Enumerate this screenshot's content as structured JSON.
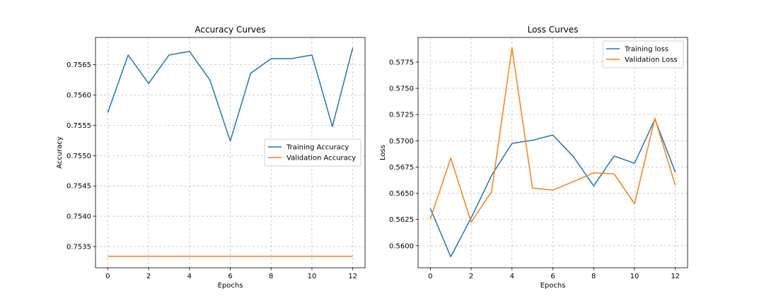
{
  "chart_data": [
    {
      "type": "line",
      "title": "Accuracy Curves",
      "xlabel": "Epochs",
      "ylabel": "Accuracy",
      "xlim": [
        -0.6,
        12.6
      ],
      "ylim": [
        0.75315,
        0.75695
      ],
      "x_ticks": [
        0,
        2,
        4,
        6,
        8,
        10,
        12
      ],
      "x_tick_labels": [
        "0",
        "2",
        "4",
        "6",
        "8",
        "10",
        "12"
      ],
      "y_ticks": [
        0.7535,
        0.754,
        0.7545,
        0.755,
        0.7555,
        0.756,
        0.7565
      ],
      "y_tick_labels": [
        "0.7535",
        "0.7540",
        "0.7545",
        "0.7550",
        "0.7555",
        "0.7560",
        "0.7565"
      ],
      "grid": true,
      "legend_position": "center-right",
      "x": [
        0,
        1,
        2,
        3,
        4,
        5,
        6,
        7,
        8,
        9,
        10,
        11,
        12
      ],
      "series": [
        {
          "name": "Training Accuracy",
          "color": "#1f77b4",
          "values": [
            0.75571,
            0.75666,
            0.75619,
            0.75666,
            0.75672,
            0.75625,
            0.75524,
            0.75636,
            0.7566,
            0.7566,
            0.75666,
            0.75548,
            0.75678
          ]
        },
        {
          "name": "Validation Accuracy",
          "color": "#ff7f0e",
          "values": [
            0.75334,
            0.75334,
            0.75334,
            0.75334,
            0.75334,
            0.75334,
            0.75334,
            0.75334,
            0.75334,
            0.75334,
            0.75334,
            0.75334,
            0.75334
          ]
        }
      ]
    },
    {
      "type": "line",
      "title": "Loss Curves",
      "xlabel": "Epochs",
      "ylabel": "Loss",
      "xlim": [
        -0.6,
        12.6
      ],
      "ylim": [
        0.5579,
        0.57985
      ],
      "x_ticks": [
        0,
        2,
        4,
        6,
        8,
        10,
        12
      ],
      "x_tick_labels": [
        "0",
        "2",
        "4",
        "6",
        "8",
        "10",
        "12"
      ],
      "y_ticks": [
        0.56,
        0.5625,
        0.565,
        0.5675,
        0.57,
        0.5725,
        0.575,
        0.5775
      ],
      "y_tick_labels": [
        "0.5600",
        "0.5625",
        "0.5650",
        "0.5675",
        "0.5700",
        "0.5725",
        "0.5750",
        "0.5775"
      ],
      "grid": true,
      "legend_position": "top-right",
      "x": [
        0,
        1,
        2,
        3,
        4,
        5,
        6,
        7,
        8,
        9,
        10,
        11,
        12
      ],
      "series": [
        {
          "name": "Training loss",
          "color": "#1f77b4",
          "values": [
            0.56355,
            0.55895,
            0.56265,
            0.5667,
            0.56975,
            0.57005,
            0.57055,
            0.5685,
            0.5657,
            0.56855,
            0.56785,
            0.57205,
            0.567
          ]
        },
        {
          "name": "Validation Loss",
          "color": "#ff7f0e",
          "values": [
            0.56255,
            0.56835,
            0.56225,
            0.56515,
            0.57885,
            0.5655,
            0.5653,
            0.5661,
            0.56695,
            0.56685,
            0.564,
            0.57215,
            0.56575
          ]
        }
      ]
    }
  ]
}
